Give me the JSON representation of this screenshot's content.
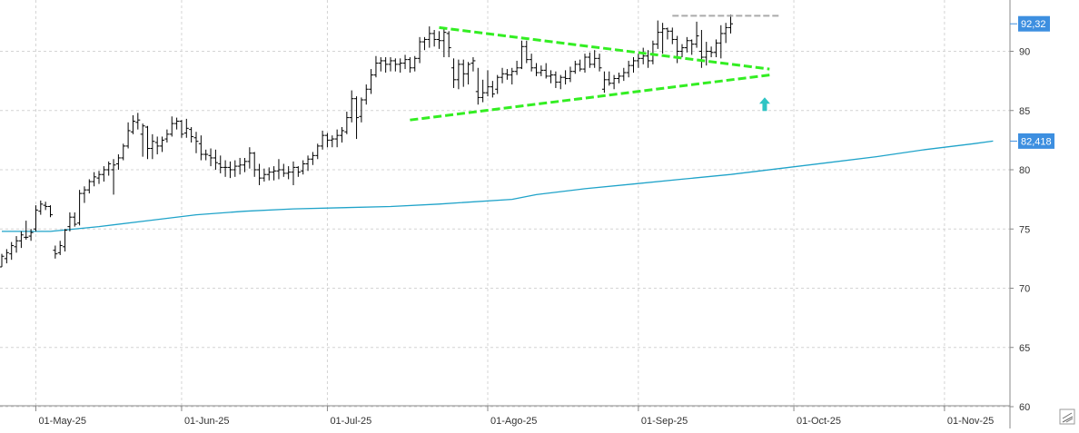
{
  "colors": {
    "bars": "#000000",
    "moving_average": "#1fa3c9",
    "trendline": "#33ee22",
    "resistance_line": "#aaaaaa",
    "arrow": "#2ec4c4",
    "badge": "#3d8fe0",
    "grid": "#d4d4d4",
    "axis": "#888888"
  },
  "icons": [
    "expand-arrows-icon"
  ],
  "chart_data": {
    "type": "ohlc",
    "xlabel": "",
    "ylabel": "",
    "ylim": [
      60,
      94
    ],
    "y_ticks": [
      60,
      65,
      70,
      75,
      80,
      85,
      90
    ],
    "x_tick_labels": [
      "01-May-25",
      "01-Jun-25",
      "01-Jul-25",
      "01-Ago-25",
      "01-Sep-25",
      "01-Oct-25",
      "01-Nov-25"
    ],
    "x_tick_index": [
      7,
      37,
      67,
      100,
      131,
      163,
      194
    ],
    "grid": true,
    "price_badge": "92,32",
    "ma_badge": "82,418",
    "ma_points": [
      [
        0,
        74.8
      ],
      [
        10,
        74.8
      ],
      [
        20,
        75.2
      ],
      [
        30,
        75.7
      ],
      [
        40,
        76.2
      ],
      [
        50,
        76.5
      ],
      [
        60,
        76.7
      ],
      [
        70,
        76.8
      ],
      [
        80,
        76.9
      ],
      [
        90,
        77.1
      ],
      [
        105,
        77.5
      ],
      [
        110,
        77.9
      ],
      [
        120,
        78.4
      ],
      [
        130,
        78.8
      ],
      [
        140,
        79.2
      ],
      [
        150,
        79.6
      ],
      [
        160,
        80.1
      ],
      [
        170,
        80.6
      ],
      [
        180,
        81.1
      ],
      [
        190,
        81.7
      ],
      [
        200,
        82.2
      ],
      [
        204,
        82.418
      ]
    ],
    "ohlc_bars": [
      [
        71.8,
        72.9,
        71.8,
        72.7
      ],
      [
        72.5,
        73.3,
        72.1,
        73.0
      ],
      [
        72.9,
        73.9,
        72.4,
        73.6
      ],
      [
        73.5,
        74.4,
        73.0,
        74.0
      ],
      [
        74.0,
        74.8,
        73.4,
        74.5
      ],
      [
        74.3,
        75.7,
        74.1,
        74.3
      ],
      [
        74.4,
        75.0,
        74.0,
        74.7
      ],
      [
        75.0,
        77.0,
        74.8,
        76.6
      ],
      [
        76.5,
        77.4,
        76.2,
        77.1
      ],
      [
        77.0,
        77.3,
        76.6,
        76.9
      ],
      [
        76.9,
        77.0,
        76.0,
        76.2
      ],
      [
        73.2,
        73.6,
        72.5,
        72.9
      ],
      [
        73.0,
        74.0,
        72.8,
        73.6
      ],
      [
        73.5,
        75.0,
        73.1,
        74.9
      ],
      [
        75.2,
        76.4,
        74.8,
        76.0
      ],
      [
        76.0,
        76.4,
        75.2,
        75.4
      ],
      [
        75.5,
        78.3,
        75.3,
        78.0
      ],
      [
        78.0,
        78.6,
        77.2,
        78.3
      ],
      [
        78.3,
        79.2,
        78.0,
        79.0
      ],
      [
        79.0,
        79.8,
        78.6,
        79.4
      ],
      [
        79.3,
        79.9,
        78.8,
        79.6
      ],
      [
        79.6,
        80.3,
        79.0,
        80.0
      ],
      [
        80.0,
        80.7,
        79.5,
        80.5
      ],
      [
        80.0,
        80.9,
        77.9,
        80.4
      ],
      [
        80.5,
        81.3,
        80.0,
        81.0
      ],
      [
        81.0,
        82.2,
        80.8,
        82.0
      ],
      [
        82.0,
        84.0,
        81.8,
        83.3
      ],
      [
        83.2,
        84.6,
        83.0,
        84.1
      ],
      [
        84.0,
        84.8,
        83.4,
        84.2
      ],
      [
        83.0,
        83.9,
        81.1,
        83.7
      ],
      [
        83.6,
        83.7,
        80.9,
        81.8
      ],
      [
        81.8,
        83.0,
        80.9,
        82.4
      ],
      [
        82.3,
        82.8,
        81.3,
        82.0
      ],
      [
        82.0,
        82.8,
        81.5,
        82.5
      ],
      [
        82.6,
        83.4,
        82.3,
        83.0
      ],
      [
        83.0,
        84.5,
        82.8,
        83.9
      ],
      [
        83.9,
        84.4,
        83.4,
        84.1
      ],
      [
        84.1,
        84.2,
        82.7,
        83.0
      ],
      [
        83.1,
        84.3,
        82.7,
        83.5
      ],
      [
        83.4,
        83.6,
        82.3,
        82.8
      ],
      [
        82.7,
        83.2,
        81.4,
        82.4
      ],
      [
        82.2,
        82.9,
        80.8,
        81.3
      ],
      [
        81.3,
        81.7,
        80.8,
        81.3
      ],
      [
        81.2,
        81.8,
        80.3,
        81.0
      ],
      [
        81.0,
        81.7,
        80.0,
        80.6
      ],
      [
        80.5,
        81.2,
        79.7,
        80.2
      ],
      [
        80.2,
        80.8,
        79.4,
        80.2
      ],
      [
        80.2,
        80.7,
        79.3,
        80.0
      ],
      [
        80.0,
        80.8,
        79.4,
        80.3
      ],
      [
        80.3,
        81.0,
        79.6,
        80.4
      ],
      [
        80.4,
        81.0,
        79.8,
        80.7
      ],
      [
        80.7,
        81.9,
        80.1,
        81.4
      ],
      [
        81.4,
        81.5,
        79.4,
        80.0
      ],
      [
        80.0,
        80.5,
        78.7,
        79.3
      ],
      [
        79.3,
        80.1,
        79.0,
        79.6
      ],
      [
        79.6,
        80.2,
        79.1,
        79.8
      ],
      [
        79.8,
        80.3,
        79.1,
        79.9
      ],
      [
        79.9,
        80.9,
        79.2,
        80.0
      ],
      [
        80.0,
        80.5,
        79.4,
        79.7
      ],
      [
        79.7,
        80.3,
        79.2,
        79.8
      ],
      [
        79.8,
        80.7,
        78.7,
        80.2
      ],
      [
        80.2,
        80.3,
        79.4,
        79.8
      ],
      [
        79.9,
        80.8,
        79.6,
        80.5
      ],
      [
        80.5,
        81.2,
        79.9,
        80.9
      ],
      [
        80.9,
        81.5,
        80.4,
        81.2
      ],
      [
        81.2,
        82.2,
        80.9,
        82.0
      ],
      [
        82.0,
        83.3,
        81.7,
        82.9
      ],
      [
        82.9,
        83.1,
        81.9,
        82.5
      ],
      [
        82.5,
        82.9,
        81.9,
        82.6
      ],
      [
        82.6,
        83.4,
        81.9,
        82.9
      ],
      [
        82.9,
        83.6,
        82.3,
        83.3
      ],
      [
        83.2,
        84.9,
        83.0,
        84.4
      ],
      [
        84.4,
        86.7,
        84.0,
        86.0
      ],
      [
        86.0,
        86.2,
        82.6,
        84.4
      ],
      [
        84.5,
        86.1,
        84.0,
        85.9
      ],
      [
        85.9,
        87.2,
        85.5,
        86.8
      ],
      [
        86.8,
        88.5,
        86.4,
        88.0
      ],
      [
        88.0,
        89.6,
        87.8,
        89.0
      ],
      [
        89.0,
        89.5,
        88.3,
        89.2
      ],
      [
        89.2,
        89.5,
        88.2,
        88.9
      ],
      [
        88.9,
        89.5,
        88.3,
        89.2
      ],
      [
        89.2,
        89.4,
        88.3,
        88.9
      ],
      [
        88.9,
        89.4,
        88.2,
        89.0
      ],
      [
        89.0,
        89.7,
        88.5,
        89.3
      ],
      [
        89.3,
        89.5,
        88.2,
        88.6
      ],
      [
        88.6,
        89.6,
        88.3,
        89.4
      ],
      [
        89.4,
        91.2,
        89.0,
        90.8
      ],
      [
        90.8,
        91.2,
        90.1,
        91.0
      ],
      [
        91.0,
        92.1,
        90.3,
        91.5
      ],
      [
        91.5,
        91.8,
        90.4,
        91.0
      ],
      [
        91.0,
        91.7,
        90.2,
        90.9
      ],
      [
        90.9,
        92.0,
        89.5,
        91.6
      ],
      [
        91.5,
        91.7,
        89.5,
        90.3
      ],
      [
        88.6,
        89.4,
        86.9,
        87.6
      ],
      [
        87.6,
        89.3,
        86.8,
        88.9
      ],
      [
        88.9,
        89.3,
        87.0,
        88.1
      ],
      [
        88.1,
        89.1,
        87.2,
        88.9
      ],
      [
        89.0,
        89.5,
        88.3,
        89.2
      ],
      [
        86.6,
        88.6,
        85.5,
        86.1
      ],
      [
        86.1,
        87.6,
        85.7,
        86.5
      ],
      [
        86.5,
        88.4,
        86.2,
        87.0
      ],
      [
        87.0,
        87.5,
        86.1,
        86.4
      ],
      [
        86.8,
        88.0,
        86.4,
        87.8
      ],
      [
        87.8,
        88.6,
        87.3,
        88.1
      ],
      [
        88.1,
        88.5,
        87.6,
        88.0
      ],
      [
        88.0,
        88.6,
        87.2,
        88.3
      ],
      [
        88.3,
        89.2,
        88.0,
        88.6
      ],
      [
        88.6,
        90.9,
        88.5,
        90.4
      ],
      [
        90.4,
        90.9,
        89.0,
        89.3
      ],
      [
        89.3,
        89.8,
        88.3,
        88.6
      ],
      [
        88.6,
        89.0,
        87.9,
        88.2
      ],
      [
        88.2,
        88.8,
        87.9,
        88.4
      ],
      [
        88.4,
        89.0,
        87.7,
        87.9
      ],
      [
        87.9,
        88.4,
        87.3,
        88.0
      ],
      [
        88.0,
        88.3,
        86.9,
        87.4
      ],
      [
        87.4,
        88.0,
        86.8,
        87.8
      ],
      [
        87.8,
        88.4,
        87.2,
        87.7
      ],
      [
        87.7,
        88.7,
        87.4,
        88.3
      ],
      [
        88.3,
        89.2,
        88.1,
        88.9
      ],
      [
        88.9,
        89.3,
        88.3,
        88.5
      ],
      [
        88.5,
        89.8,
        88.2,
        89.5
      ],
      [
        89.5,
        89.9,
        88.6,
        88.9
      ],
      [
        88.9,
        90.1,
        88.6,
        89.4
      ],
      [
        89.4,
        89.8,
        88.3,
        88.6
      ],
      [
        86.8,
        88.3,
        86.5,
        87.6
      ],
      [
        87.6,
        88.3,
        87.1,
        87.3
      ],
      [
        87.3,
        88.0,
        86.8,
        87.7
      ],
      [
        87.7,
        88.2,
        87.3,
        87.9
      ],
      [
        87.9,
        88.6,
        87.5,
        88.2
      ],
      [
        88.2,
        89.2,
        87.8,
        88.8
      ],
      [
        88.8,
        89.5,
        88.2,
        89.2
      ],
      [
        89.2,
        89.8,
        88.6,
        89.4
      ],
      [
        89.4,
        90.3,
        88.9,
        89.6
      ],
      [
        89.6,
        90.1,
        88.6,
        89.2
      ],
      [
        89.2,
        90.9,
        88.9,
        90.6
      ],
      [
        90.6,
        92.6,
        90.2,
        91.6
      ],
      [
        91.6,
        92.4,
        89.8,
        91.9
      ],
      [
        91.9,
        92.0,
        91.0,
        91.7
      ],
      [
        91.7,
        92.0,
        90.6,
        91.0
      ],
      [
        91.0,
        91.3,
        89.0,
        90.0
      ],
      [
        90.0,
        90.6,
        89.5,
        90.3
      ],
      [
        90.3,
        91.2,
        89.9,
        90.9
      ],
      [
        90.9,
        91.0,
        89.7,
        90.6
      ],
      [
        90.6,
        92.5,
        90.3,
        91.3
      ],
      [
        90.0,
        91.8,
        88.6,
        89.5
      ],
      [
        89.5,
        90.8,
        88.8,
        90.0
      ],
      [
        90.0,
        90.4,
        89.5,
        89.9
      ],
      [
        89.9,
        91.0,
        89.5,
        90.7
      ],
      [
        90.7,
        92.2,
        89.4,
        91.5
      ],
      [
        91.5,
        92.4,
        90.7,
        92.0
      ],
      [
        92.0,
        93.1,
        91.5,
        92.32
      ]
    ],
    "annotations": [
      {
        "type": "trendline",
        "style": "dashed",
        "points": [
          [
            90,
            92.0
          ],
          [
            158,
            88.5
          ]
        ]
      },
      {
        "type": "trendline",
        "style": "dashed",
        "points": [
          [
            84,
            84.2
          ],
          [
            158,
            88.0
          ]
        ]
      },
      {
        "type": "horizontal-line",
        "style": "dashed",
        "points": [
          [
            138,
            93.0
          ],
          [
            160,
            93.0
          ]
        ]
      },
      {
        "type": "arrow-up",
        "points": [
          [
            157,
            85.5
          ]
        ]
      }
    ]
  }
}
